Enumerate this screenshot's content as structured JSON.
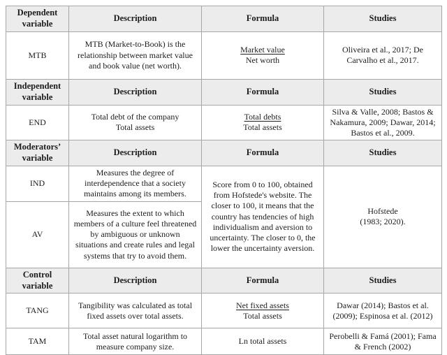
{
  "table": {
    "sections": {
      "dependent": {
        "header": {
          "variable": "Dependent variable",
          "description": "Description",
          "formula": "Formula",
          "studies": "Studies"
        },
        "mtb": {
          "variable": "MTB",
          "description": "MTB (Market-to-Book) is the relationship between market value and book value (net worth).",
          "formula": {
            "numerator": "Market value",
            "denominator": "Net worth"
          },
          "studies": "Oliveira et al., 2017; De Carvalho et al., 2017."
        }
      },
      "independent": {
        "header": {
          "variable": "Independent variable",
          "description": "Description",
          "formula": "Formula",
          "studies": "Studies"
        },
        "end": {
          "variable": "END",
          "description": "Total debt of the company\nTotal assets",
          "formula": {
            "numerator": "Total debts",
            "denominator": "Total assets"
          },
          "studies": "Silva & Valle, 2008; Bastos & Nakamura, 2009; Dawar, 2014; Bastos et al., 2009."
        }
      },
      "moderators": {
        "header": {
          "variable": "Moderators’ variable",
          "description": "Description",
          "formula": "Formula",
          "studies": "Studies"
        },
        "ind": {
          "variable": "IND",
          "description": "Measures the degree of interdependence that a society maintains among its members."
        },
        "av": {
          "variable": "AV",
          "description": "Measures the extent to which members of a culture feel threatened by ambiguous or unknown situations and create rules and legal systems that try to avoid them."
        },
        "shared": {
          "formula": "Score from 0 to 100, obtained from Hofstede's website. The closer to 100, it means that the country has tendencies of high individualism and aversion to uncertainty. The closer to 0, the lower the uncertainty aversion.",
          "studies": "Hofstede\n(1983; 2020)."
        }
      },
      "control": {
        "header": {
          "variable": "Control variable",
          "description": "Description",
          "formula": "Formula",
          "studies": "Studies"
        },
        "tang": {
          "variable": "TANG",
          "description": "Tangibility was calculated as total fixed assets over total assets.",
          "formula": {
            "numerator": "Net fixed assets",
            "denominator": "Total assets"
          },
          "studies": "Dawar (2014); Bastos et al. (2009); Espinosa et al. (2012)"
        },
        "tam": {
          "variable": "TAM",
          "description": "Total asset natural logarithm to measure company size.",
          "formula_text": "Ln total assets",
          "studies": "Perobelli & Famá (2001); Fama & French (2002)"
        }
      }
    }
  },
  "colors": {
    "header_bg": "#ececec",
    "border_inner": "#a6a6a6",
    "border_outer": "#5f5f5f",
    "text": "#1c1c1c"
  }
}
